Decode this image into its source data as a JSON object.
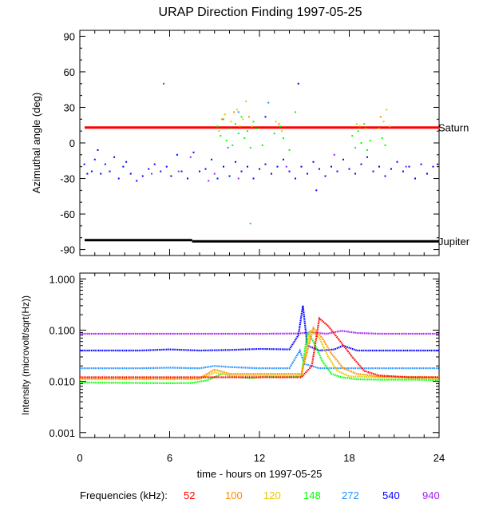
{
  "chart_data": [
    {
      "type": "scatter",
      "title": "URAP Direction Finding  1997-05-25",
      "ylabel": "Azimuthal angle (deg)",
      "ylim": [
        -95,
        95
      ],
      "xlim": [
        0,
        24
      ],
      "yticks": [
        "90",
        "60",
        "30",
        "0",
        "-30",
        "-60",
        "-90"
      ],
      "ytick_values": [
        90,
        60,
        30,
        0,
        -30,
        -60,
        -90
      ],
      "reference_lines": [
        {
          "name": "Saturn",
          "y_start": 13,
          "y_end": 13,
          "color": "#ff0000"
        },
        {
          "name": "Jupiter",
          "y_start": -82,
          "y_end": -83,
          "break_x": 7.5,
          "color": "#000000"
        }
      ],
      "series": [
        {
          "name": "540",
          "color": "#0000ff",
          "points": [
            [
              0.3,
              -18
            ],
            [
              0.5,
              -26
            ],
            [
              0.8,
              -24
            ],
            [
              1.0,
              -14
            ],
            [
              1.2,
              -6
            ],
            [
              1.4,
              -26
            ],
            [
              1.7,
              -18
            ],
            [
              2.0,
              -24
            ],
            [
              2.3,
              -12
            ],
            [
              2.6,
              -30
            ],
            [
              2.9,
              -20
            ],
            [
              3.1,
              -16
            ],
            [
              3.4,
              -26
            ],
            [
              3.8,
              -32
            ],
            [
              4.2,
              -28
            ],
            [
              4.6,
              -22
            ],
            [
              5.0,
              -18
            ],
            [
              5.4,
              -24
            ],
            [
              5.8,
              -20
            ],
            [
              6.1,
              -28
            ],
            [
              6.5,
              -10
            ],
            [
              6.8,
              -24
            ],
            [
              7.2,
              -30
            ],
            [
              7.6,
              -8
            ],
            [
              8.0,
              -24
            ],
            [
              8.4,
              -22
            ],
            [
              8.8,
              -14
            ],
            [
              9.2,
              -30
            ],
            [
              9.6,
              -20
            ],
            [
              10.0,
              -28
            ],
            [
              10.4,
              -16
            ],
            [
              10.8,
              -24
            ],
            [
              11.2,
              -20
            ],
            [
              11.6,
              -30
            ],
            [
              12.0,
              -22
            ],
            [
              12.4,
              -18
            ],
            [
              12.8,
              -26
            ],
            [
              13.2,
              -20
            ],
            [
              13.6,
              -14
            ],
            [
              14.0,
              -24
            ],
            [
              14.4,
              -30
            ],
            [
              14.8,
              -20
            ],
            [
              15.2,
              -26
            ],
            [
              15.6,
              -16
            ],
            [
              16.0,
              -22
            ],
            [
              16.4,
              -28
            ],
            [
              16.8,
              -20
            ],
            [
              17.2,
              -24
            ],
            [
              17.6,
              -14
            ],
            [
              18.0,
              -22
            ],
            [
              18.4,
              -26
            ],
            [
              18.8,
              -18
            ],
            [
              19.2,
              -12
            ],
            [
              19.6,
              -24
            ],
            [
              20.0,
              -20
            ],
            [
              20.4,
              -28
            ],
            [
              20.8,
              -22
            ],
            [
              21.2,
              -16
            ],
            [
              21.6,
              -24
            ],
            [
              22.0,
              -20
            ],
            [
              22.4,
              -30
            ],
            [
              22.8,
              -18
            ],
            [
              23.2,
              -26
            ],
            [
              23.6,
              -20
            ],
            [
              23.9,
              -18
            ],
            [
              12.4,
              22
            ],
            [
              15.8,
              -40
            ],
            [
              14.6,
              50
            ]
          ]
        },
        {
          "name": "940",
          "color": "#a020f0",
          "points": [
            [
              4.8,
              -26
            ],
            [
              6.6,
              -24
            ],
            [
              7.4,
              -12
            ],
            [
              8.6,
              -32
            ],
            [
              9.0,
              -26
            ],
            [
              10.6,
              -30
            ],
            [
              13.8,
              -20
            ],
            [
              17.0,
              -10
            ],
            [
              21.8,
              -20
            ],
            [
              5.6,
              50
            ]
          ]
        },
        {
          "name": "148",
          "color": "#00ff00",
          "points": [
            [
              9.2,
              14
            ],
            [
              9.4,
              6
            ],
            [
              9.6,
              20
            ],
            [
              9.8,
              2
            ],
            [
              10.0,
              12
            ],
            [
              10.2,
              -2
            ],
            [
              10.4,
              16
            ],
            [
              10.6,
              8
            ],
            [
              10.8,
              22
            ],
            [
              11.0,
              4
            ],
            [
              11.2,
              10
            ],
            [
              11.4,
              -4
            ],
            [
              11.6,
              18
            ],
            [
              11.8,
              12
            ],
            [
              12.2,
              -2
            ],
            [
              13.0,
              8
            ],
            [
              13.4,
              14
            ],
            [
              13.6,
              4
            ],
            [
              14.0,
              -6
            ],
            [
              14.4,
              26
            ],
            [
              18.2,
              6
            ],
            [
              18.4,
              -4
            ],
            [
              18.6,
              10
            ],
            [
              18.8,
              0
            ],
            [
              19.0,
              16
            ],
            [
              19.2,
              -6
            ],
            [
              19.4,
              2
            ],
            [
              20.2,
              4
            ],
            [
              20.4,
              -2
            ],
            [
              11.4,
              -68
            ]
          ]
        },
        {
          "name": "120",
          "color": "#e6c800",
          "points": [
            [
              9.3,
              10
            ],
            [
              9.7,
              24
            ],
            [
              10.1,
              18
            ],
            [
              10.5,
              28
            ],
            [
              10.9,
              20
            ],
            [
              11.1,
              35
            ],
            [
              11.5,
              14
            ],
            [
              13.1,
              18
            ],
            [
              13.5,
              10
            ],
            [
              18.5,
              16
            ],
            [
              19.1,
              12
            ],
            [
              20.0,
              12
            ],
            [
              20.3,
              18
            ],
            [
              20.5,
              28
            ],
            [
              20.7,
              14
            ]
          ]
        },
        {
          "name": "100",
          "color": "#ff8c00",
          "points": [
            [
              9.5,
              20
            ],
            [
              10.3,
              26
            ],
            [
              10.7,
              14
            ],
            [
              11.3,
              22
            ],
            [
              13.3,
              16
            ],
            [
              18.7,
              14
            ],
            [
              20.1,
              22
            ]
          ]
        },
        {
          "name": "272",
          "color": "#1e90ff",
          "points": [
            [
              12.6,
              34
            ],
            [
              9.9,
              -4
            ],
            [
              10.6,
              26
            ]
          ]
        }
      ]
    },
    {
      "type": "line",
      "xlabel": "time - hours on 1997-05-25",
      "ylabel": "Intensity (microvolt/sqrt(Hz))",
      "yscale": "log",
      "ylim": [
        0.001,
        1.0
      ],
      "xlim": [
        0,
        24
      ],
      "xticks": [
        "0",
        "6",
        "12",
        "18",
        "24"
      ],
      "xtick_values": [
        0,
        6,
        12,
        18,
        24
      ],
      "yticks": [
        "1.000",
        "0.100",
        "0.010",
        "0.001"
      ],
      "ytick_values": [
        1.0,
        0.1,
        0.01,
        0.001
      ],
      "series": [
        {
          "name": "940",
          "color": "#a020f0",
          "points": [
            [
              0,
              0.085
            ],
            [
              6,
              0.085
            ],
            [
              12,
              0.085
            ],
            [
              14.5,
              0.086
            ],
            [
              15.5,
              0.09
            ],
            [
              16.5,
              0.085
            ],
            [
              17.5,
              0.097
            ],
            [
              18.5,
              0.088
            ],
            [
              20,
              0.085
            ],
            [
              24,
              0.085
            ]
          ]
        },
        {
          "name": "540",
          "color": "#0000ff",
          "points": [
            [
              0,
              0.04
            ],
            [
              4,
              0.04
            ],
            [
              6,
              0.042
            ],
            [
              8,
              0.04
            ],
            [
              10,
              0.041
            ],
            [
              12,
              0.043
            ],
            [
              14,
              0.042
            ],
            [
              14.6,
              0.08
            ],
            [
              14.9,
              0.3
            ],
            [
              15.2,
              0.05
            ],
            [
              16,
              0.04
            ],
            [
              17,
              0.042
            ],
            [
              17.6,
              0.05
            ],
            [
              18.5,
              0.04
            ],
            [
              20,
              0.04
            ],
            [
              24,
              0.04
            ]
          ]
        },
        {
          "name": "272",
          "color": "#1e90ff",
          "points": [
            [
              0,
              0.018
            ],
            [
              4,
              0.018
            ],
            [
              6,
              0.0185
            ],
            [
              8,
              0.018
            ],
            [
              9,
              0.02
            ],
            [
              10,
              0.019
            ],
            [
              12,
              0.018
            ],
            [
              14,
              0.018
            ],
            [
              14.7,
              0.04
            ],
            [
              15,
              0.022
            ],
            [
              16,
              0.018
            ],
            [
              18,
              0.018
            ],
            [
              20,
              0.018
            ],
            [
              24,
              0.018
            ]
          ]
        },
        {
          "name": "148",
          "color": "#00ff00",
          "points": [
            [
              0,
              0.0095
            ],
            [
              4,
              0.0093
            ],
            [
              6,
              0.0092
            ],
            [
              7.5,
              0.0093
            ],
            [
              8.5,
              0.0105
            ],
            [
              9.5,
              0.014
            ],
            [
              10.5,
              0.012
            ],
            [
              11.5,
              0.0115
            ],
            [
              12.5,
              0.0125
            ],
            [
              13.5,
              0.012
            ],
            [
              14.8,
              0.0125
            ],
            [
              15.2,
              0.09
            ],
            [
              15.6,
              0.06
            ],
            [
              16.2,
              0.025
            ],
            [
              16.8,
              0.014
            ],
            [
              17.5,
              0.012
            ],
            [
              18.5,
              0.011
            ],
            [
              20,
              0.0108
            ],
            [
              22,
              0.0108
            ],
            [
              24,
              0.0106
            ]
          ]
        },
        {
          "name": "120",
          "color": "#e6c800",
          "points": [
            [
              0,
              0.011
            ],
            [
              6,
              0.011
            ],
            [
              8,
              0.011
            ],
            [
              9,
              0.015
            ],
            [
              10,
              0.013
            ],
            [
              12,
              0.013
            ],
            [
              14.8,
              0.013
            ],
            [
              15.4,
              0.1
            ],
            [
              16,
              0.07
            ],
            [
              16.6,
              0.03
            ],
            [
              17.2,
              0.016
            ],
            [
              18,
              0.0125
            ],
            [
              20,
              0.012
            ],
            [
              24,
              0.0115
            ]
          ]
        },
        {
          "name": "100",
          "color": "#ff8c00",
          "points": [
            [
              0,
              0.0115
            ],
            [
              6,
              0.0115
            ],
            [
              8,
              0.0115
            ],
            [
              9,
              0.017
            ],
            [
              10,
              0.014
            ],
            [
              12,
              0.014
            ],
            [
              14.8,
              0.014
            ],
            [
              15.6,
              0.11
            ],
            [
              16.2,
              0.07
            ],
            [
              16.8,
              0.035
            ],
            [
              17.6,
              0.018
            ],
            [
              18.5,
              0.014
            ],
            [
              20,
              0.0125
            ],
            [
              24,
              0.012
            ]
          ]
        },
        {
          "name": "52",
          "color": "#ff0000",
          "points": [
            [
              0,
              0.012
            ],
            [
              6,
              0.012
            ],
            [
              8,
              0.012
            ],
            [
              10,
              0.012
            ],
            [
              12,
              0.012
            ],
            [
              14.8,
              0.012
            ],
            [
              15.5,
              0.02
            ],
            [
              16,
              0.17
            ],
            [
              16.6,
              0.12
            ],
            [
              17.4,
              0.06
            ],
            [
              18.2,
              0.03
            ],
            [
              19,
              0.016
            ],
            [
              20,
              0.013
            ],
            [
              22,
              0.012
            ],
            [
              24,
              0.012
            ]
          ]
        }
      ]
    }
  ],
  "legend": {
    "label": "Frequencies (kHz):",
    "items": [
      {
        "text": "52",
        "color": "#ff0000"
      },
      {
        "text": "100",
        "color": "#ff8c00"
      },
      {
        "text": "120",
        "color": "#e6c800"
      },
      {
        "text": "148",
        "color": "#00ff00"
      },
      {
        "text": "272",
        "color": "#1e90ff"
      },
      {
        "text": "540",
        "color": "#0000ff"
      },
      {
        "text": "940",
        "color": "#a020f0"
      }
    ]
  }
}
